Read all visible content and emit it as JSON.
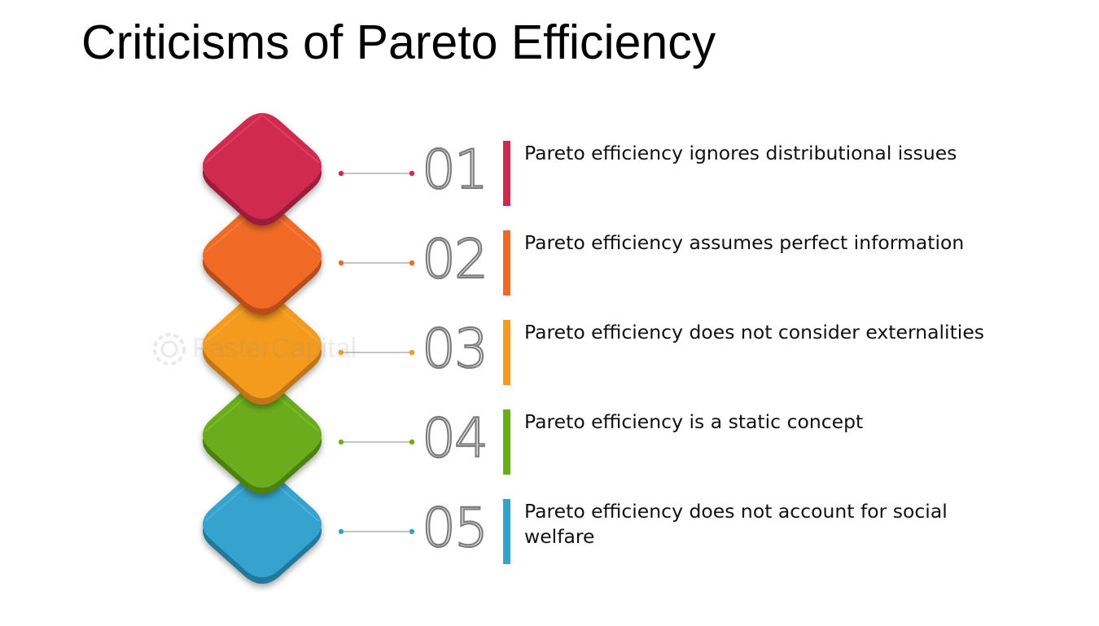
{
  "title": "Criticisms of Pareto Efficiency",
  "watermark": {
    "text": "FasterCapital",
    "icon": "gear-icon"
  },
  "items": [
    {
      "number": "01",
      "text": "Pareto efficiency ignores distributional issues",
      "color": "#d0294f",
      "dark": "#9e1d3a",
      "light": "#e4557a"
    },
    {
      "number": "02",
      "text": "Pareto efficiency assumes perfect information",
      "color": "#f06a25",
      "dark": "#b84e1a",
      "light": "#f78d52"
    },
    {
      "number": "03",
      "text": "Pareto efficiency does not consider externalities",
      "color": "#f49a1e",
      "dark": "#c07514",
      "light": "#f8b24a"
    },
    {
      "number": "04",
      "text": "Pareto efficiency is a static concept",
      "color": "#6aac1a",
      "dark": "#4d8110",
      "light": "#8cc53c"
    },
    {
      "number": "05",
      "text": "Pareto efficiency does not account for social welfare",
      "color": "#36a3cd",
      "dark": "#23799b",
      "light": "#5fbbdf"
    }
  ]
}
